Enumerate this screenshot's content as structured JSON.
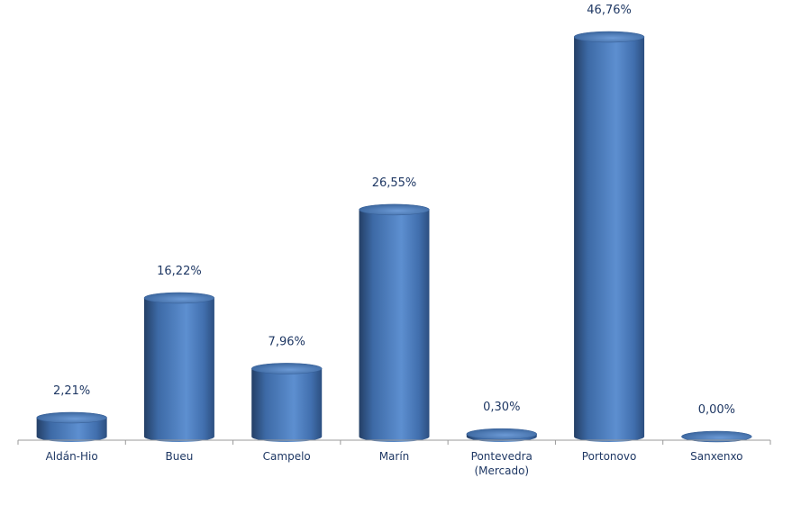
{
  "chart_data": {
    "type": "bar",
    "style": "3d-cylinder",
    "categories": [
      "Aldán-Hio",
      "Bueu",
      "Campelo",
      "Marín",
      "Pontevedra (Mercado)",
      "Portonovo",
      "Sanxenxo"
    ],
    "category_lines": [
      [
        "Aldán-Hio"
      ],
      [
        "Bueu"
      ],
      [
        "Campelo"
      ],
      [
        "Marín"
      ],
      [
        "Pontevedra",
        "(Mercado)"
      ],
      [
        "Portonovo"
      ],
      [
        "Sanxenxo"
      ]
    ],
    "values": [
      2.21,
      16.22,
      7.96,
      26.55,
      0.3,
      46.76,
      0.0
    ],
    "data_labels": [
      "2,21%",
      "16,22%",
      "7,96%",
      "26,55%",
      "0,30%",
      "46,76%",
      "0,00%"
    ],
    "title": "",
    "xlabel": "",
    "ylabel": "",
    "ylim": [
      0,
      46.76
    ],
    "grid": false,
    "legend": "none",
    "colors": {
      "bar": "#4f81bd",
      "bar_dark": "#2a4d7e",
      "bar_light": "#7ea6dc",
      "text": "#1f3864",
      "axis": "#9a9a9a"
    }
  }
}
